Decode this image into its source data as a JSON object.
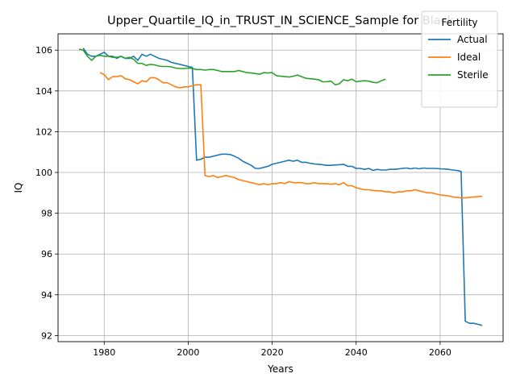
{
  "chart_data": {
    "type": "line",
    "title": "Upper_Quartile_IQ_in_TRUST_IN_SCIENCE_Sample for Black",
    "xlabel": "Years",
    "ylabel": "IQ",
    "xlim": [
      1969,
      2075
    ],
    "ylim": [
      91.7,
      106.8
    ],
    "xticks": [
      1980,
      2000,
      2020,
      2040,
      2060
    ],
    "yticks": [
      92,
      94,
      96,
      98,
      100,
      102,
      104,
      106
    ],
    "grid": true,
    "legend": {
      "title": "Fertility",
      "placement": "top-right"
    },
    "series": [
      {
        "name": "Actual",
        "color": "#1f77b4",
        "points": [
          [
            1975,
            106.1
          ],
          [
            1976,
            105.8
          ],
          [
            1977,
            105.7
          ],
          [
            1978,
            105.7
          ],
          [
            1979,
            105.8
          ],
          [
            1980,
            105.9
          ],
          [
            1981,
            105.7
          ],
          [
            1982,
            105.7
          ],
          [
            1983,
            105.6
          ],
          [
            1984,
            105.7
          ],
          [
            1985,
            105.6
          ],
          [
            1986,
            105.6
          ],
          [
            1987,
            105.7
          ],
          [
            1988,
            105.5
          ],
          [
            1989,
            105.8
          ],
          [
            1990,
            105.7
          ],
          [
            1991,
            105.8
          ],
          [
            1992,
            105.7
          ],
          [
            1993,
            105.6
          ],
          [
            1994,
            105.55
          ],
          [
            1995,
            105.5
          ],
          [
            1996,
            105.4
          ],
          [
            1997,
            105.35
          ],
          [
            1998,
            105.3
          ],
          [
            1999,
            105.25
          ],
          [
            2000,
            105.2
          ],
          [
            2001,
            105.15
          ],
          [
            2002,
            100.6
          ],
          [
            2003,
            100.65
          ],
          [
            2004,
            100.75
          ],
          [
            2005,
            100.75
          ],
          [
            2006,
            100.8
          ],
          [
            2007,
            100.85
          ],
          [
            2008,
            100.9
          ],
          [
            2009,
            100.9
          ],
          [
            2010,
            100.88
          ],
          [
            2011,
            100.8
          ],
          [
            2012,
            100.7
          ],
          [
            2013,
            100.55
          ],
          [
            2014,
            100.45
          ],
          [
            2015,
            100.35
          ],
          [
            2016,
            100.2
          ],
          [
            2017,
            100.2
          ],
          [
            2018,
            100.25
          ],
          [
            2019,
            100.3
          ],
          [
            2020,
            100.4
          ],
          [
            2021,
            100.45
          ],
          [
            2022,
            100.5
          ],
          [
            2023,
            100.55
          ],
          [
            2024,
            100.6
          ],
          [
            2025,
            100.55
          ],
          [
            2026,
            100.6
          ],
          [
            2027,
            100.5
          ],
          [
            2028,
            100.5
          ],
          [
            2029,
            100.45
          ],
          [
            2030,
            100.42
          ],
          [
            2031,
            100.4
          ],
          [
            2032,
            100.38
          ],
          [
            2033,
            100.35
          ],
          [
            2034,
            100.35
          ],
          [
            2035,
            100.37
          ],
          [
            2036,
            100.38
          ],
          [
            2037,
            100.4
          ],
          [
            2038,
            100.3
          ],
          [
            2039,
            100.3
          ],
          [
            2040,
            100.2
          ],
          [
            2041,
            100.2
          ],
          [
            2042,
            100.15
          ],
          [
            2043,
            100.2
          ],
          [
            2044,
            100.1
          ],
          [
            2045,
            100.15
          ],
          [
            2046,
            100.12
          ],
          [
            2047,
            100.12
          ],
          [
            2048,
            100.15
          ],
          [
            2049,
            100.15
          ],
          [
            2050,
            100.17
          ],
          [
            2051,
            100.2
          ],
          [
            2052,
            100.22
          ],
          [
            2053,
            100.18
          ],
          [
            2054,
            100.22
          ],
          [
            2055,
            100.18
          ],
          [
            2056,
            100.22
          ],
          [
            2057,
            100.2
          ],
          [
            2058,
            100.2
          ],
          [
            2059,
            100.2
          ],
          [
            2060,
            100.18
          ],
          [
            2061,
            100.17
          ],
          [
            2062,
            100.15
          ],
          [
            2063,
            100.12
          ],
          [
            2064,
            100.1
          ],
          [
            2065,
            100.05
          ],
          [
            2066,
            92.7
          ],
          [
            2067,
            92.6
          ],
          [
            2068,
            92.6
          ],
          [
            2069,
            92.55
          ],
          [
            2070,
            92.5
          ]
        ]
      },
      {
        "name": "Ideal",
        "color": "#ff7f0e",
        "points": [
          [
            1979,
            104.9
          ],
          [
            1980,
            104.8
          ],
          [
            1981,
            104.55
          ],
          [
            1982,
            104.7
          ],
          [
            1983,
            104.7
          ],
          [
            1984,
            104.75
          ],
          [
            1985,
            104.6
          ],
          [
            1986,
            104.55
          ],
          [
            1987,
            104.45
          ],
          [
            1988,
            104.35
          ],
          [
            1989,
            104.5
          ],
          [
            1990,
            104.45
          ],
          [
            1991,
            104.65
          ],
          [
            1992,
            104.65
          ],
          [
            1993,
            104.55
          ],
          [
            1994,
            104.4
          ],
          [
            1995,
            104.4
          ],
          [
            1996,
            104.3
          ],
          [
            1997,
            104.2
          ],
          [
            1998,
            104.15
          ],
          [
            1999,
            104.2
          ],
          [
            2000,
            104.2
          ],
          [
            2001,
            104.25
          ],
          [
            2002,
            104.3
          ],
          [
            2003,
            104.3
          ],
          [
            2004,
            99.85
          ],
          [
            2005,
            99.8
          ],
          [
            2006,
            99.85
          ],
          [
            2007,
            99.75
          ],
          [
            2008,
            99.8
          ],
          [
            2009,
            99.85
          ],
          [
            2010,
            99.8
          ],
          [
            2011,
            99.75
          ],
          [
            2012,
            99.65
          ],
          [
            2013,
            99.6
          ],
          [
            2014,
            99.55
          ],
          [
            2015,
            99.5
          ],
          [
            2016,
            99.45
          ],
          [
            2017,
            99.4
          ],
          [
            2018,
            99.45
          ],
          [
            2019,
            99.4
          ],
          [
            2020,
            99.45
          ],
          [
            2021,
            99.45
          ],
          [
            2022,
            99.5
          ],
          [
            2023,
            99.45
          ],
          [
            2024,
            99.55
          ],
          [
            2025,
            99.5
          ],
          [
            2026,
            99.5
          ],
          [
            2027,
            99.5
          ],
          [
            2028,
            99.45
          ],
          [
            2029,
            99.45
          ],
          [
            2030,
            99.5
          ],
          [
            2031,
            99.45
          ],
          [
            2032,
            99.45
          ],
          [
            2033,
            99.45
          ],
          [
            2034,
            99.42
          ],
          [
            2035,
            99.45
          ],
          [
            2036,
            99.4
          ],
          [
            2037,
            99.5
          ],
          [
            2038,
            99.35
          ],
          [
            2039,
            99.35
          ],
          [
            2040,
            99.25
          ],
          [
            2041,
            99.2
          ],
          [
            2042,
            99.15
          ],
          [
            2043,
            99.15
          ],
          [
            2044,
            99.12
          ],
          [
            2045,
            99.1
          ],
          [
            2046,
            99.1
          ],
          [
            2047,
            99.05
          ],
          [
            2048,
            99.05
          ],
          [
            2049,
            99.0
          ],
          [
            2050,
            99.05
          ],
          [
            2051,
            99.05
          ],
          [
            2052,
            99.1
          ],
          [
            2053,
            99.1
          ],
          [
            2054,
            99.15
          ],
          [
            2055,
            99.1
          ],
          [
            2056,
            99.05
          ],
          [
            2057,
            99.0
          ],
          [
            2058,
            99.0
          ],
          [
            2059,
            98.95
          ],
          [
            2060,
            98.9
          ],
          [
            2061,
            98.88
          ],
          [
            2062,
            98.85
          ],
          [
            2063,
            98.8
          ],
          [
            2064,
            98.78
          ],
          [
            2065,
            98.75
          ],
          [
            2066,
            98.75
          ],
          [
            2067,
            98.78
          ],
          [
            2068,
            98.8
          ],
          [
            2069,
            98.82
          ],
          [
            2070,
            98.83
          ]
        ]
      },
      {
        "name": "Sterile",
        "color": "#2ca02c",
        "points": [
          [
            1974,
            106.05
          ],
          [
            1975,
            106.0
          ],
          [
            1976,
            105.7
          ],
          [
            1977,
            105.5
          ],
          [
            1978,
            105.7
          ],
          [
            1979,
            105.75
          ],
          [
            1980,
            105.7
          ],
          [
            1981,
            105.7
          ],
          [
            1982,
            105.65
          ],
          [
            1983,
            105.65
          ],
          [
            1984,
            105.7
          ],
          [
            1985,
            105.6
          ],
          [
            1986,
            105.65
          ],
          [
            1987,
            105.55
          ],
          [
            1988,
            105.35
          ],
          [
            1989,
            105.35
          ],
          [
            1990,
            105.25
          ],
          [
            1991,
            105.3
          ],
          [
            1992,
            105.28
          ],
          [
            1993,
            105.22
          ],
          [
            1994,
            105.2
          ],
          [
            1995,
            105.2
          ],
          [
            1996,
            105.18
          ],
          [
            1997,
            105.12
          ],
          [
            1998,
            105.1
          ],
          [
            1999,
            105.1
          ],
          [
            2000,
            105.12
          ],
          [
            2001,
            105.1
          ],
          [
            2002,
            105.05
          ],
          [
            2003,
            105.05
          ],
          [
            2004,
            105.02
          ],
          [
            2005,
            105.05
          ],
          [
            2006,
            105.05
          ],
          [
            2007,
            105.0
          ],
          [
            2008,
            104.95
          ],
          [
            2009,
            104.95
          ],
          [
            2010,
            104.95
          ],
          [
            2011,
            104.95
          ],
          [
            2012,
            105.0
          ],
          [
            2013,
            104.95
          ],
          [
            2014,
            104.9
          ],
          [
            2015,
            104.88
          ],
          [
            2016,
            104.85
          ],
          [
            2017,
            104.82
          ],
          [
            2018,
            104.9
          ],
          [
            2019,
            104.88
          ],
          [
            2020,
            104.9
          ],
          [
            2021,
            104.75
          ],
          [
            2022,
            104.72
          ],
          [
            2023,
            104.7
          ],
          [
            2024,
            104.68
          ],
          [
            2025,
            104.72
          ],
          [
            2026,
            104.78
          ],
          [
            2027,
            104.7
          ],
          [
            2028,
            104.62
          ],
          [
            2029,
            104.6
          ],
          [
            2030,
            104.58
          ],
          [
            2031,
            104.55
          ],
          [
            2032,
            104.45
          ],
          [
            2033,
            104.45
          ],
          [
            2034,
            104.48
          ],
          [
            2035,
            104.3
          ],
          [
            2036,
            104.35
          ],
          [
            2037,
            104.55
          ],
          [
            2038,
            104.5
          ],
          [
            2039,
            104.58
          ],
          [
            2040,
            104.45
          ],
          [
            2041,
            104.48
          ],
          [
            2042,
            104.5
          ],
          [
            2043,
            104.48
          ],
          [
            2044,
            104.42
          ],
          [
            2045,
            104.4
          ],
          [
            2046,
            104.5
          ],
          [
            2047,
            104.58
          ]
        ]
      }
    ]
  }
}
